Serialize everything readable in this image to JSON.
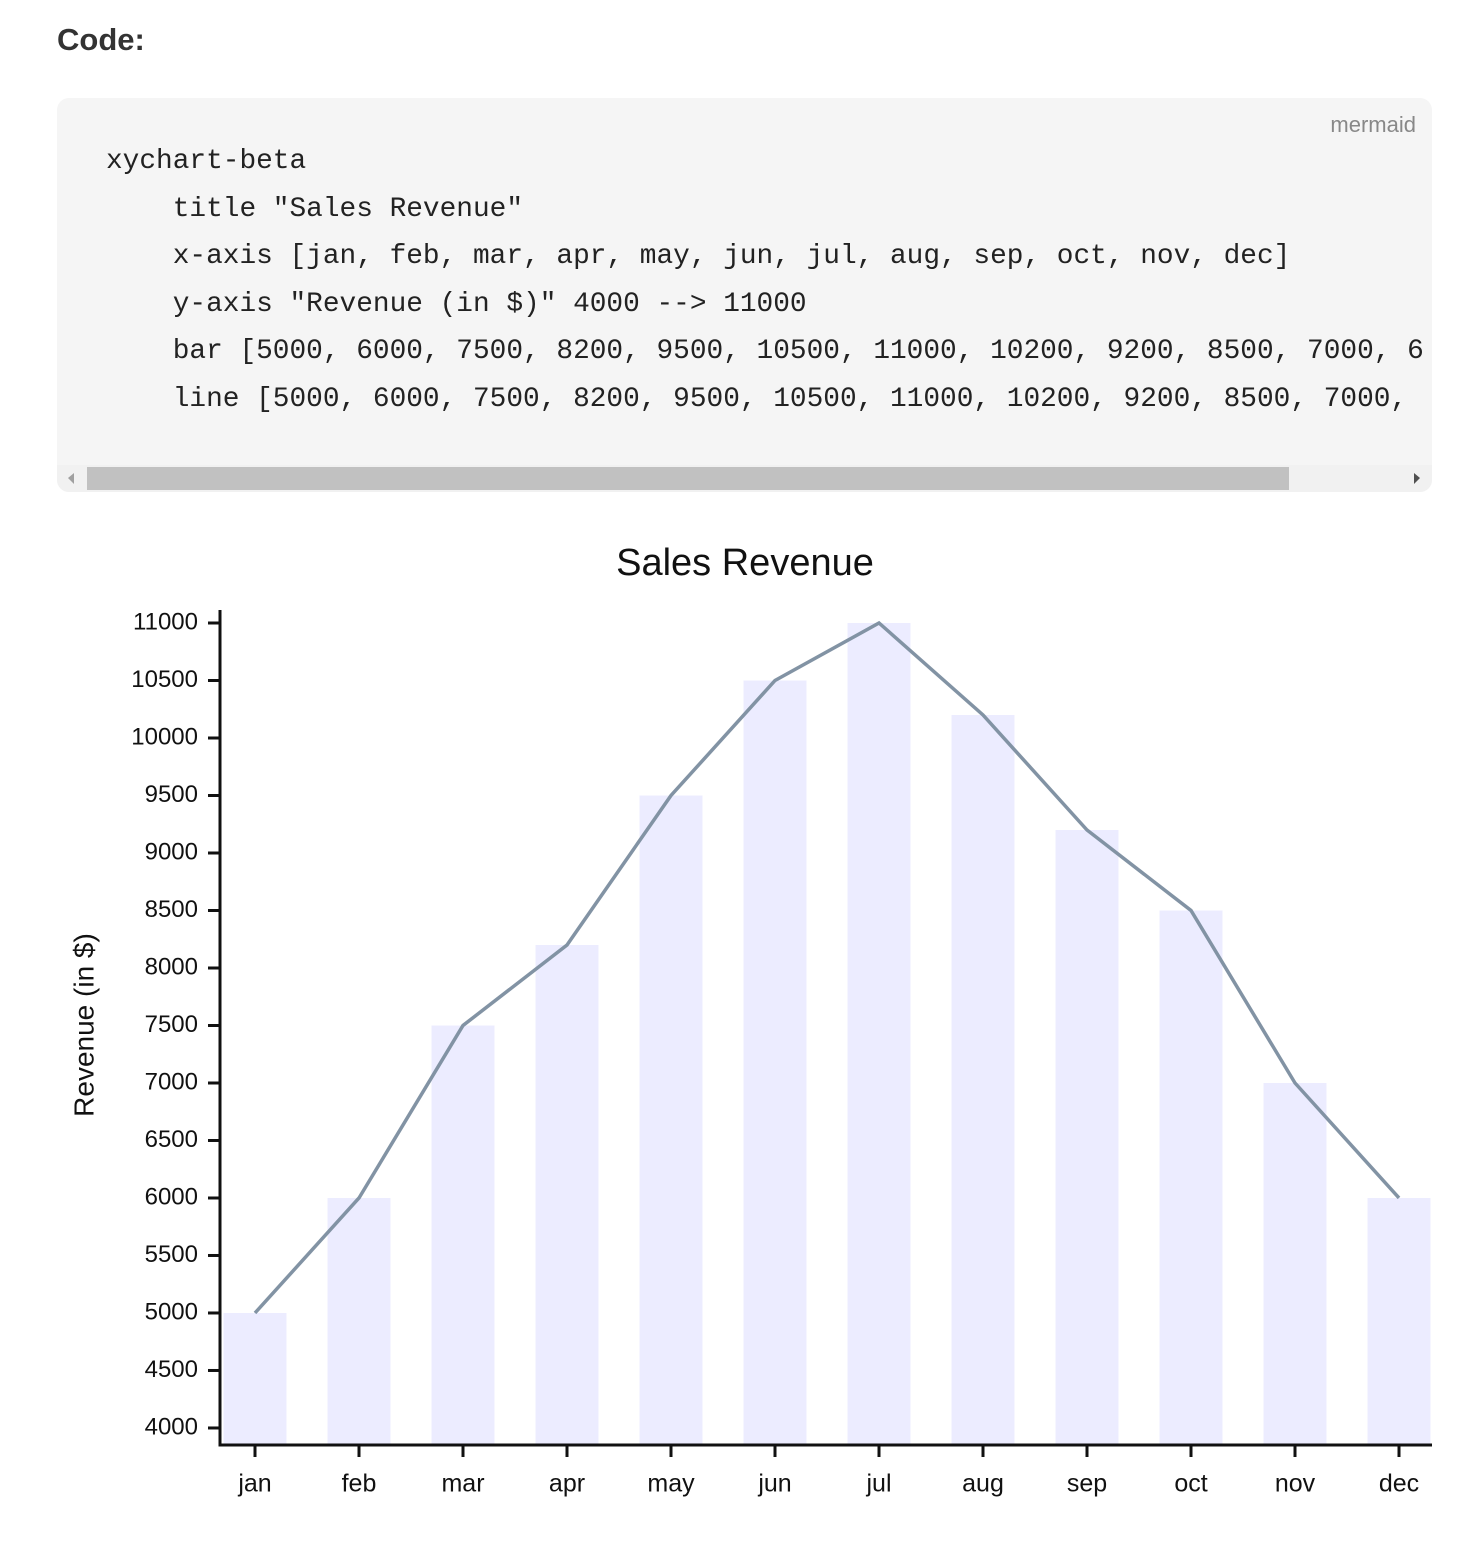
{
  "heading": "Code:",
  "code": {
    "lang": "mermaid",
    "lines": [
      "xychart-beta",
      "    title \"Sales Revenue\"",
      "    x-axis [jan, feb, mar, apr, may, jun, jul, aug, sep, oct, nov, dec]",
      "    y-axis \"Revenue (in $)\" 4000 --> 11000",
      "    bar [5000, 6000, 7500, 8200, 9500, 10500, 11000, 10200, 9200, 8500, 7000, 6",
      "    line [5000, 6000, 7500, 8200, 9500, 10500, 11000, 10200, 9200, 8500, 7000,"
    ]
  },
  "chart_data": {
    "type": "bar+line",
    "title": "Sales Revenue",
    "y_label": "Revenue (in $)",
    "categories": [
      "jan",
      "feb",
      "mar",
      "apr",
      "may",
      "jun",
      "jul",
      "aug",
      "sep",
      "oct",
      "nov",
      "dec"
    ],
    "series": [
      {
        "type": "bar",
        "color": "#ececff",
        "values": [
          5000,
          6000,
          7500,
          8200,
          9500,
          10500,
          11000,
          10200,
          9200,
          8500,
          7000,
          6000
        ]
      },
      {
        "type": "line",
        "color": "#8293a4",
        "values": [
          5000,
          6000,
          7500,
          8200,
          9500,
          10500,
          11000,
          10200,
          9200,
          8500,
          7000,
          6000
        ]
      }
    ],
    "ylim": [
      3852,
      11113
    ],
    "yticks": [
      4000,
      4500,
      5000,
      5500,
      6000,
      6500,
      7000,
      7500,
      8000,
      8500,
      9000,
      9500,
      10000,
      10500,
      11000
    ]
  }
}
